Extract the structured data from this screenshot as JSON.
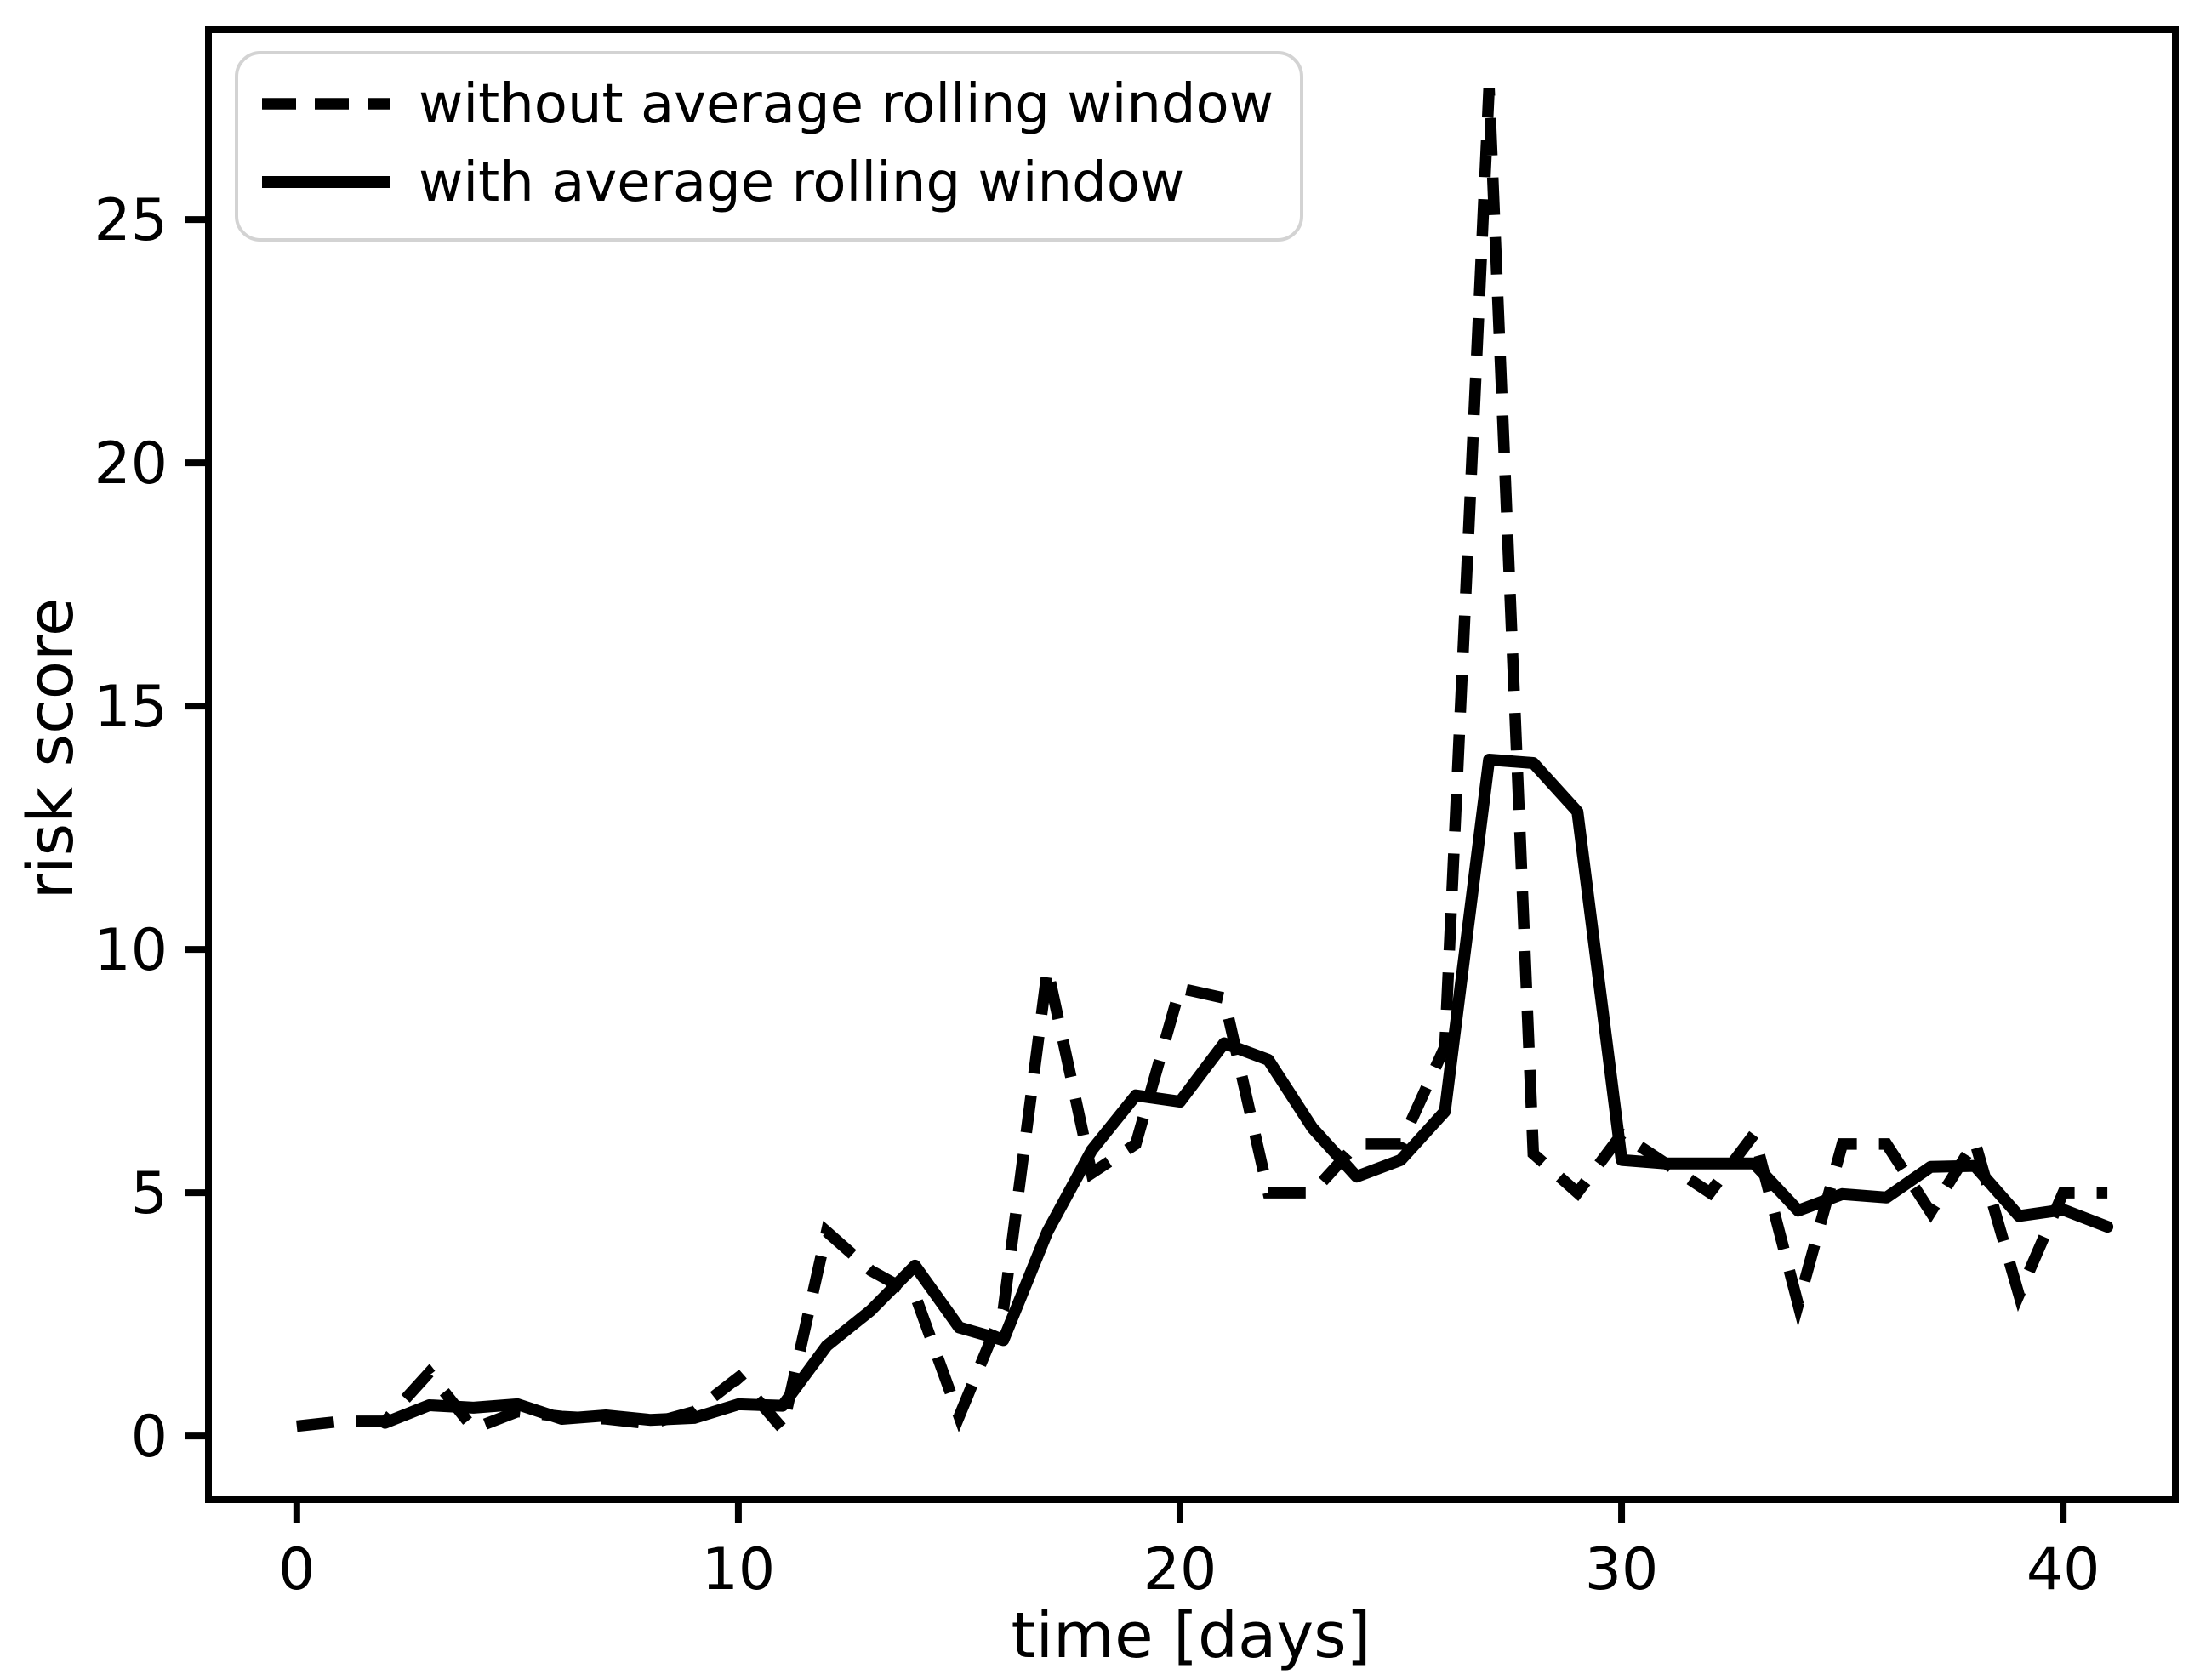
{
  "figure": {
    "background": "#ffffff",
    "line_color": "#000000",
    "legend_edge_color": "#d3d3d3"
  },
  "chart_data": {
    "type": "line",
    "title": "",
    "xlabel": "time [days]",
    "ylabel": "risk score",
    "grid": false,
    "legend_position": "upper left",
    "xlim": [
      -2.0,
      42.54
    ],
    "ylim": [
      -1.31,
      28.9
    ],
    "xticks": [
      0,
      10,
      20,
      30,
      40
    ],
    "yticks": [
      0,
      5,
      10,
      15,
      20,
      25
    ],
    "x": [
      0,
      1,
      2,
      3,
      4,
      5,
      6,
      7,
      8,
      9,
      10,
      11,
      12,
      13,
      14,
      15,
      16,
      17,
      18,
      19,
      20,
      21,
      22,
      23,
      24,
      25,
      26,
      27,
      28,
      29,
      30,
      31,
      32,
      33,
      34,
      35,
      36,
      37,
      38,
      39,
      40,
      41
    ],
    "series": [
      {
        "name": "without average rolling window",
        "style": "dashed",
        "values": [
          0.2,
          0.3,
          0.3,
          1.3,
          0.15,
          0.5,
          0.4,
          0.35,
          0.25,
          0.5,
          1.2,
          0.15,
          4.2,
          3.4,
          2.9,
          0.4,
          2.6,
          9.6,
          5.4,
          6.0,
          9.2,
          9.0,
          5.0,
          5.0,
          6.0,
          6.0,
          8.0,
          27.7,
          5.8,
          5.0,
          6.2,
          5.6,
          5.0,
          6.2,
          2.7,
          6.0,
          6.0,
          4.6,
          6.05,
          2.9,
          5.0,
          5.0
        ]
      },
      {
        "name": "with average rolling window",
        "style": "solid",
        "values": [
          null,
          null,
          0.27,
          0.63,
          0.58,
          0.65,
          0.35,
          0.42,
          0.33,
          0.37,
          0.65,
          0.62,
          1.85,
          2.58,
          3.5,
          2.23,
          1.97,
          4.2,
          5.87,
          7.0,
          6.87,
          8.07,
          7.73,
          6.33,
          5.33,
          5.67,
          6.67,
          13.9,
          13.83,
          12.83,
          5.67,
          5.6,
          5.6,
          5.6,
          4.63,
          4.97,
          4.9,
          5.53,
          5.55,
          4.52,
          4.65,
          4.3
        ]
      }
    ]
  }
}
